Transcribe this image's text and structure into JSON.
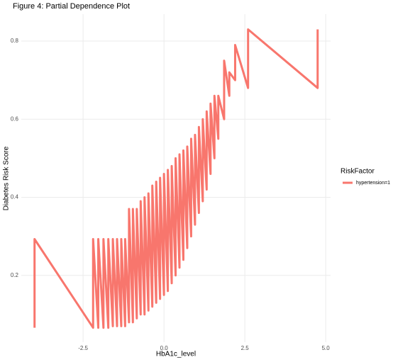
{
  "chart_data": {
    "type": "line",
    "title": "Figure 4: Partial Dependence Plot",
    "x_label": "HbA1c_level",
    "y_label": "Diabetes Risk Score",
    "legend_title": "RiskFactor",
    "legend_position": "right",
    "grid": true,
    "x": [
      -4.0,
      -4.0,
      -2.19,
      -2.19,
      -2.03,
      -2.03,
      -1.87,
      -1.87,
      -1.72,
      -1.72,
      -1.58,
      -1.58,
      -1.45,
      -1.45,
      -1.32,
      -1.32,
      -1.2,
      -1.2,
      -1.08,
      -1.08,
      -0.96,
      -0.96,
      -0.84,
      -0.84,
      -0.72,
      -0.72,
      -0.6,
      -0.6,
      -0.48,
      -0.48,
      -0.36,
      -0.36,
      -0.24,
      -0.24,
      -0.12,
      -0.12,
      0.0,
      0.0,
      0.12,
      0.12,
      0.24,
      0.24,
      0.36,
      0.36,
      0.48,
      0.48,
      0.6,
      0.6,
      0.72,
      0.72,
      0.84,
      0.84,
      0.96,
      0.96,
      1.08,
      1.08,
      1.2,
      1.2,
      1.32,
      1.32,
      1.44,
      1.44,
      1.56,
      1.56,
      1.68,
      1.68,
      1.86,
      1.86,
      2.02,
      2.02,
      2.2,
      2.2,
      2.6,
      2.6,
      4.75,
      4.75
    ],
    "series": [
      {
        "name": "hypertension=1",
        "color": "#F8766D",
        "values": [
          0.066,
          0.293,
          0.066,
          0.293,
          0.066,
          0.293,
          0.066,
          0.293,
          0.066,
          0.293,
          0.07,
          0.293,
          0.07,
          0.293,
          0.07,
          0.293,
          0.07,
          0.293,
          0.08,
          0.37,
          0.08,
          0.37,
          0.09,
          0.37,
          0.1,
          0.39,
          0.1,
          0.4,
          0.11,
          0.41,
          0.12,
          0.43,
          0.13,
          0.44,
          0.14,
          0.45,
          0.15,
          0.46,
          0.16,
          0.47,
          0.18,
          0.48,
          0.2,
          0.5,
          0.22,
          0.51,
          0.24,
          0.52,
          0.27,
          0.53,
          0.3,
          0.55,
          0.33,
          0.56,
          0.36,
          0.58,
          0.39,
          0.6,
          0.42,
          0.62,
          0.46,
          0.64,
          0.5,
          0.66,
          0.55,
          0.66,
          0.6,
          0.75,
          0.66,
          0.72,
          0.7,
          0.79,
          0.68,
          0.83,
          0.68,
          0.83
        ]
      }
    ],
    "xlim": [
      -4.41,
      5.15
    ],
    "ylim": [
      0.029,
      0.869
    ],
    "xticks": [
      -2.5,
      {
        "value": 0,
        "label": "0.0"
      },
      2.5,
      {
        "value": 5,
        "label": "5.0"
      }
    ],
    "yticks": [
      0.2,
      0.4,
      0.6,
      0.8
    ]
  }
}
